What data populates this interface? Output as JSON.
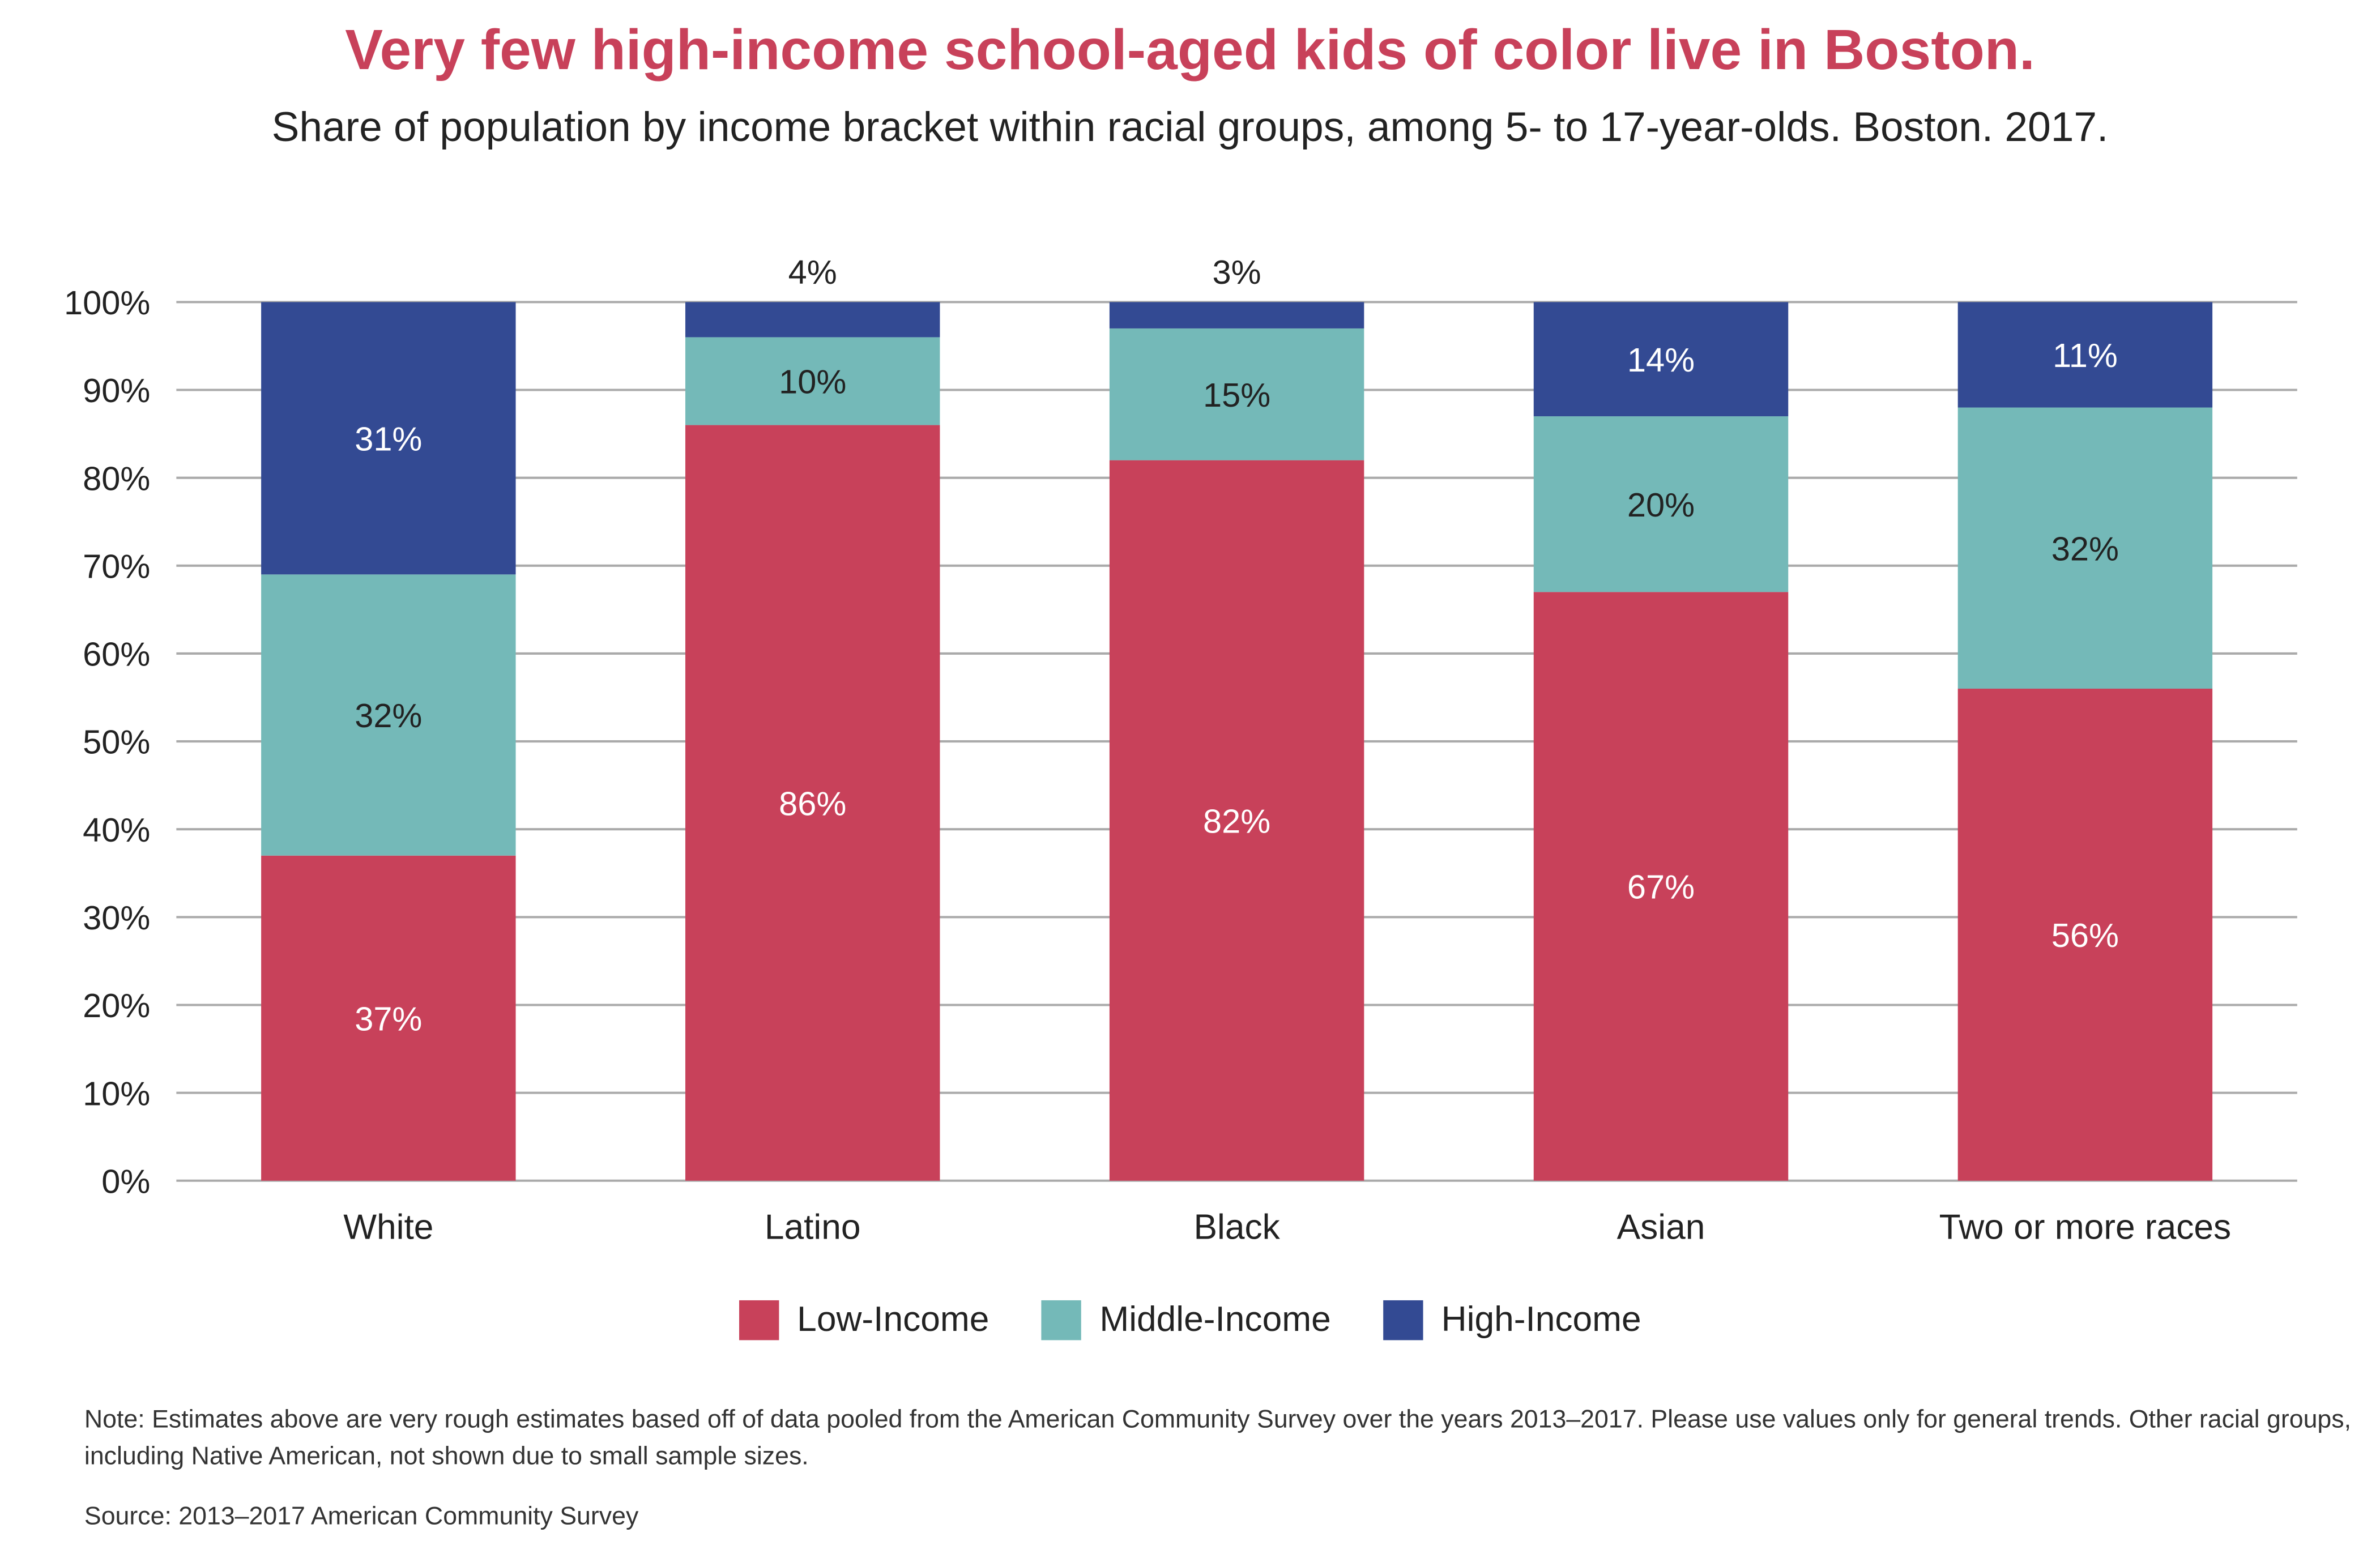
{
  "chart_data": {
    "type": "bar",
    "stacked": true,
    "title": "Very few high-income school-aged kids of color live in Boston.",
    "subtitle": "Share of population by income bracket within racial groups, among 5- to 17-year-olds. Boston. 2017.",
    "categories": [
      "White",
      "Latino",
      "Black",
      "Asian",
      "Two or more races"
    ],
    "series": [
      {
        "name": "Low-Income",
        "color": "#c8415a",
        "values": [
          37,
          86,
          82,
          67,
          56
        ],
        "labels": [
          "37%",
          "86%",
          "82%",
          "67%",
          "56%"
        ]
      },
      {
        "name": "Middle-Income",
        "color": "#74b9b8",
        "values": [
          32,
          10,
          15,
          20,
          32
        ],
        "labels": [
          "32%",
          "10%",
          "15%",
          "20%",
          "32%"
        ]
      },
      {
        "name": "High-Income",
        "color": "#334a93",
        "values": [
          31,
          4,
          3,
          14,
          11
        ],
        "labels": [
          "31%",
          "4%",
          "3%",
          "14%",
          "11%"
        ]
      }
    ],
    "ylim": [
      0,
      100
    ],
    "yticks": [
      "0%",
      "10%",
      "20%",
      "30%",
      "40%",
      "50%",
      "60%",
      "70%",
      "80%",
      "90%",
      "100%"
    ],
    "grid": true,
    "legend_position": "bottom"
  },
  "note": "Note: Estimates above are very rough estimates based off of data pooled from the American Community Survey over the years 2013–2017. Please use values only for general trends. Other racial groups, including Native American, not shown due to small sample sizes.",
  "source": "Source: 2013–2017 American Community Survey"
}
